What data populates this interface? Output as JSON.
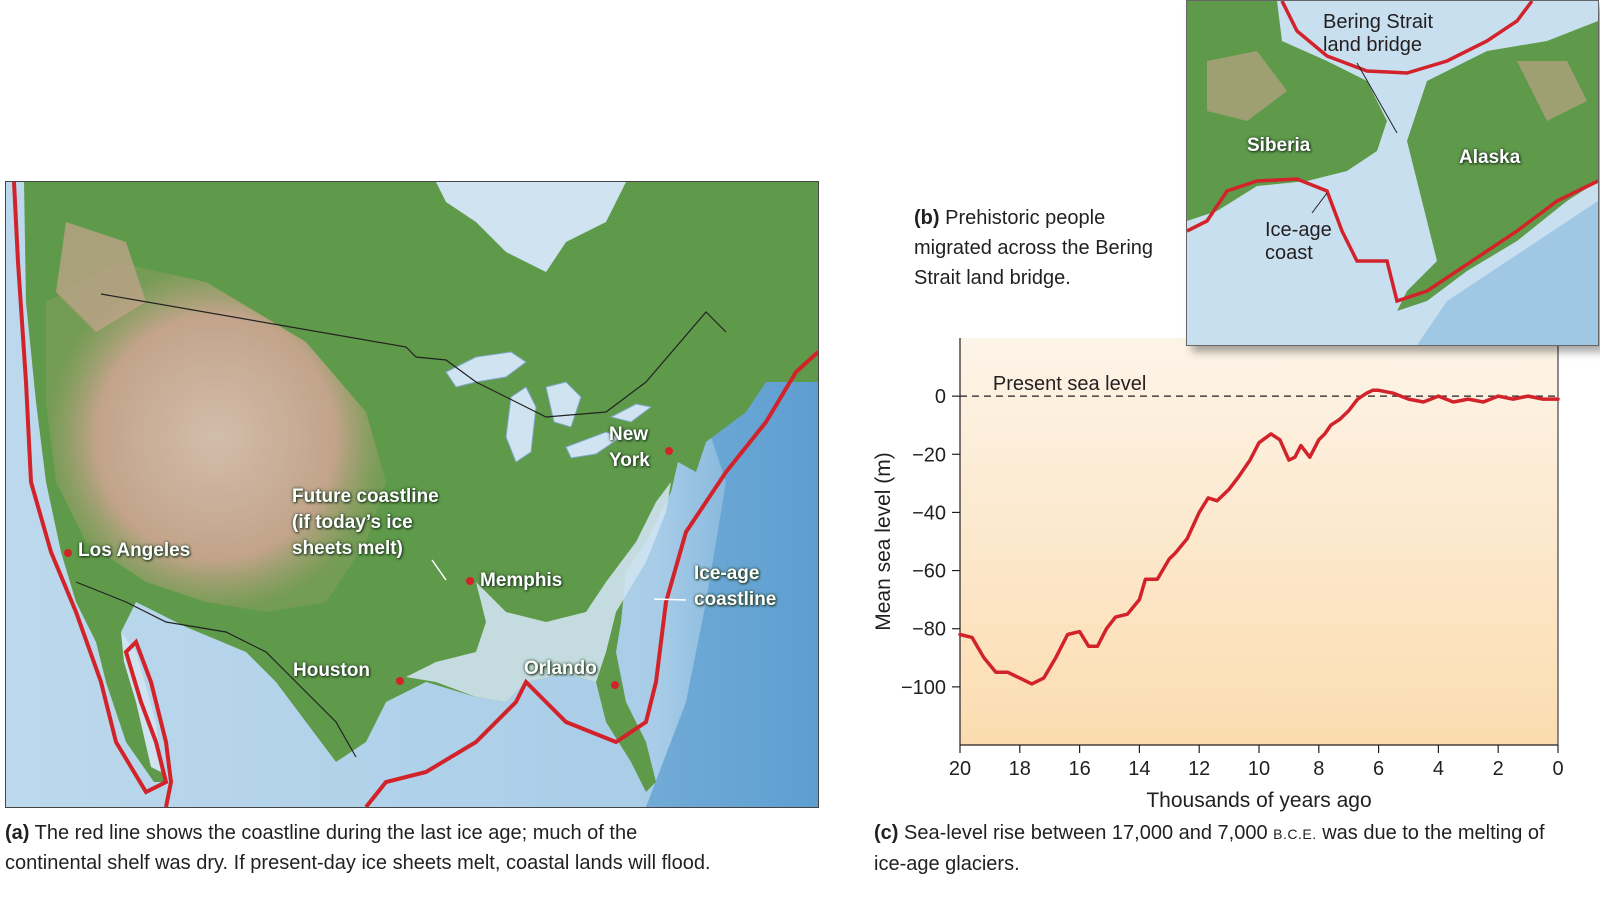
{
  "panel_a": {
    "labels": {
      "new_york": "New\nYork",
      "future_coastline": "Future coastline\n(if today’s ice\nsheets melt)",
      "los_angeles": "Los Angeles",
      "memphis": "Memphis",
      "ice_age_coastline": "Ice-age\ncoastline",
      "houston": "Houston",
      "orlando": "Orlando"
    },
    "caption_letter": "(a)",
    "caption_text": " The red line shows the coastline during the last ice age; much of the continental shelf was dry. If present-day ice sheets melt, coastal lands will flood."
  },
  "panel_b": {
    "labels": {
      "bering": "Bering Strait\nland bridge",
      "siberia": "Siberia",
      "alaska": "Alaska",
      "ice_age_coast": "Ice-age\ncoast"
    },
    "caption_letter": "(b)",
    "caption_text": " Prehistoric people migrated across the Bering Strait land bridge."
  },
  "panel_c": {
    "caption_letter": "(c)",
    "caption_text_1": " Sea-level rise between 17,000 and 7,000 ",
    "caption_bce": "B.C.E.",
    "caption_text_2": " was due to the melting of ice-age glaciers."
  },
  "colors": {
    "coastline_red": "#d2232a",
    "land_green": "#5f9a4a",
    "land_tan": "#c8a48e",
    "shelf_blue": "#bcd8ec",
    "ocean_blue": "#5e9fd0",
    "chart_bg_top": "#fdf4e8",
    "chart_bg_bottom": "#fbdcb0"
  },
  "chart_data": {
    "type": "line",
    "xlabel": "Thousands of years ago",
    "ylabel": "Mean sea level (m)",
    "xlim": [
      20,
      0
    ],
    "ylim": [
      -120,
      20
    ],
    "x_ticks": [
      20,
      18,
      16,
      14,
      12,
      10,
      8,
      6,
      4,
      2,
      0
    ],
    "y_ticks": [
      0,
      -20,
      -40,
      -60,
      -80,
      -100
    ],
    "y_tick_labels": [
      "0",
      "−20",
      "−40",
      "−60",
      "−80",
      "−100"
    ],
    "annotation": "Present sea level",
    "reference_line_y": 0,
    "series": [
      {
        "x": [
          20,
          19.6,
          19.2,
          18.8,
          18.4,
          18.0,
          17.6,
          17.2,
          16.8,
          16.4,
          16.0,
          15.7,
          15.4,
          15.1,
          14.8,
          14.4,
          14.0,
          13.8,
          13.4,
          13.0,
          12.8,
          12.4,
          12.0,
          11.7,
          11.4,
          11.0,
          10.7,
          10.3,
          10.0,
          9.6,
          9.3,
          9.0,
          8.8,
          8.6,
          8.3,
          8.0,
          7.8,
          7.6,
          7.3,
          7.0,
          6.7,
          6.4,
          6.2,
          6.0,
          5.5,
          5.0,
          4.5,
          4.0,
          3.5,
          3.0,
          2.5,
          2.0,
          1.5,
          1.0,
          0.5,
          0
        ],
        "y": [
          -82,
          -83,
          -90,
          -95,
          -95,
          -97,
          -99,
          -97,
          -90,
          -82,
          -81,
          -86,
          -86,
          -80,
          -76,
          -75,
          -70,
          -63,
          -63,
          -56,
          -54,
          -49,
          -40,
          -35,
          -36,
          -32,
          -28,
          -22,
          -16,
          -13,
          -15,
          -22,
          -21,
          -17,
          -21,
          -15,
          -13,
          -10,
          -8,
          -5,
          -1,
          1,
          2,
          2,
          1,
          -1,
          -2,
          0,
          -2,
          -1,
          -2,
          0,
          -1,
          0,
          -1,
          -1
        ]
      }
    ]
  }
}
